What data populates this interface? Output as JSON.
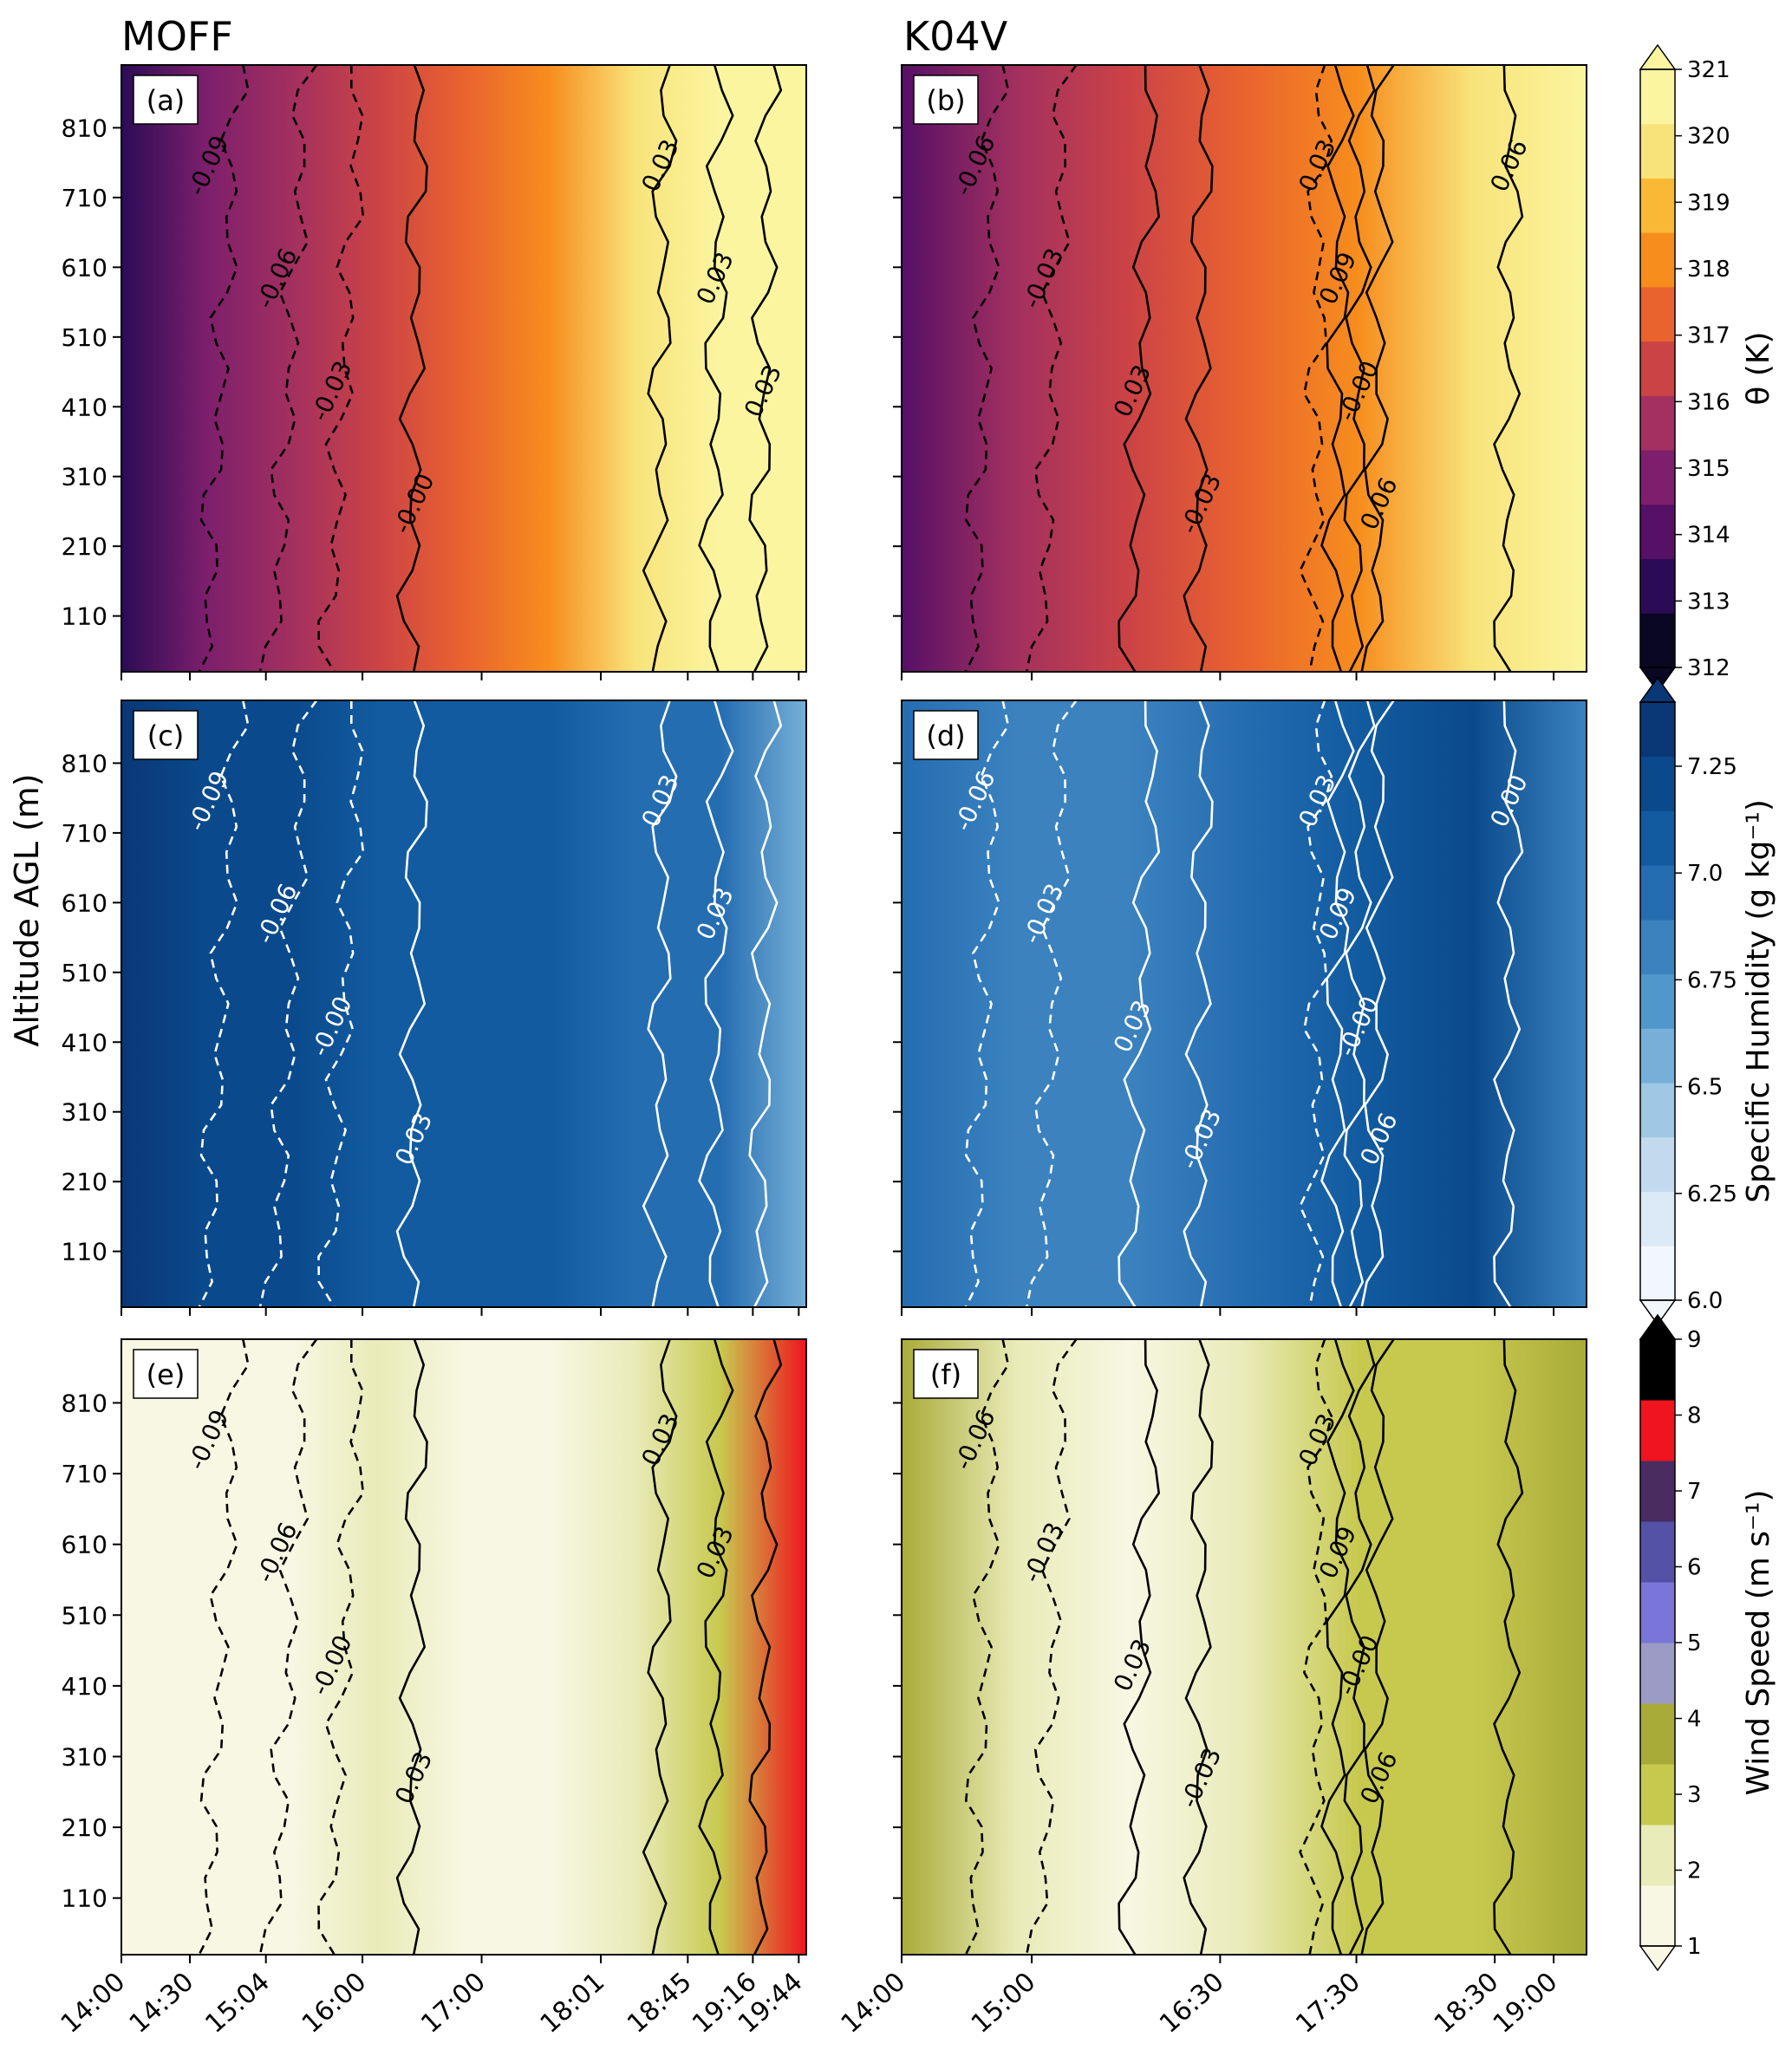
{
  "figure": {
    "column_titles": [
      "MOFF",
      "K04V"
    ],
    "shared_ylabel": "Altitude AGL (m)"
  },
  "chart_data": [
    {
      "type": "heatmap",
      "panel": "(a)",
      "column": "MOFF",
      "variable": "theta",
      "x_ticks": [
        "14:00",
        "14:30",
        "15:04",
        "16:00",
        "17:00",
        "18:01",
        "18:45",
        "19:16",
        "19:44"
      ],
      "y_ticks": [
        110,
        210,
        310,
        410,
        510,
        610,
        710,
        810
      ],
      "ylim": [
        30,
        900
      ],
      "ylabel": "Altitude AGL (m)",
      "approx_theta_by_time_K": [
        313.5,
        314.5,
        315.5,
        316.5,
        317.5,
        318.5,
        319.5,
        320.5,
        320.5
      ],
      "contour_labels": [
        "-0.09",
        "-0.06",
        "-0.03",
        "-0.00",
        "0.03",
        "0.03",
        "0.03"
      ]
    },
    {
      "type": "heatmap",
      "panel": "(b)",
      "column": "K04V",
      "variable": "theta",
      "x_ticks": [
        "14:00",
        "15:00",
        "16:30",
        "17:30",
        "18:30",
        "19:00"
      ],
      "y_ticks": [
        110,
        210,
        310,
        410,
        510,
        610,
        710,
        810
      ],
      "ylim": [
        30,
        900
      ],
      "approx_theta_by_time_K": [
        314,
        315.5,
        316.5,
        317.5,
        318.5,
        319.5,
        320.5
      ],
      "contour_labels": [
        "-0.06",
        "-0.03",
        "0.03",
        "-0.03",
        "0.03",
        "0.09",
        "-0.00",
        "0.06",
        "0.06"
      ]
    },
    {
      "type": "heatmap",
      "panel": "(c)",
      "column": "MOFF",
      "variable": "specific_humidity",
      "x_ticks": [
        "14:00",
        "14:30",
        "15:04",
        "16:00",
        "17:00",
        "18:01",
        "18:45",
        "19:16",
        "19:44"
      ],
      "y_ticks": [
        110,
        210,
        310,
        410,
        510,
        610,
        710,
        810
      ],
      "ylim": [
        30,
        900
      ],
      "ylabel": "Altitude AGL (m)",
      "approx_q_by_time_gkg": [
        7.3,
        7.2,
        7.15,
        7.1,
        7.1,
        7.05,
        7.0,
        6.9,
        6.6
      ],
      "contour_labels": [
        "-0.09",
        "-0.06",
        "-0.00",
        "0.03",
        "0.03",
        "0.03"
      ]
    },
    {
      "type": "heatmap",
      "panel": "(d)",
      "column": "K04V",
      "variable": "specific_humidity",
      "x_ticks": [
        "14:00",
        "15:00",
        "16:30",
        "17:30",
        "18:30",
        "19:00"
      ],
      "y_ticks": [
        110,
        210,
        310,
        410,
        510,
        610,
        710,
        810
      ],
      "ylim": [
        30,
        900
      ],
      "approx_q_by_time_gkg": [
        6.9,
        6.8,
        6.85,
        6.95,
        7.1,
        7.2,
        6.85
      ],
      "contour_labels": [
        "-0.06",
        "-0.03",
        "0.03",
        "-0.03",
        "0.03",
        "0.09",
        "-0.00",
        "0.06",
        "0.00"
      ]
    },
    {
      "type": "heatmap",
      "panel": "(e)",
      "column": "MOFF",
      "variable": "wind_speed",
      "x_ticks": [
        "14:00",
        "14:30",
        "15:04",
        "16:00",
        "17:00",
        "18:01",
        "18:45",
        "19:16",
        "19:44"
      ],
      "y_ticks": [
        110,
        210,
        310,
        410,
        510,
        610,
        710,
        810
      ],
      "ylim": [
        30,
        900
      ],
      "ylabel": "Altitude AGL (m)",
      "approx_ws_by_time_ms": [
        1.5,
        1.2,
        1.0,
        2.2,
        1.0,
        1.3,
        2.5,
        3.0,
        7.5
      ],
      "contour_labels": [
        "-0.09",
        "-0.06",
        "-0.00",
        "0.03",
        "0.03",
        "0.03"
      ]
    },
    {
      "type": "heatmap",
      "panel": "(f)",
      "column": "K04V",
      "variable": "wind_speed",
      "x_ticks": [
        "14:00",
        "15:00",
        "16:30",
        "17:30",
        "18:30",
        "19:00"
      ],
      "y_ticks": [
        110,
        210,
        310,
        410,
        510,
        610,
        710,
        810
      ],
      "ylim": [
        30,
        900
      ],
      "approx_ws_by_time_ms": [
        3.5,
        2.5,
        1.5,
        2.2,
        2.8,
        3.2,
        3.5
      ],
      "contour_labels": [
        "-0.06",
        "-0.03",
        "0.03",
        "-0.03",
        "0.03",
        "0.09",
        "-0.00",
        "0.06"
      ]
    }
  ],
  "colorbars": [
    {
      "name": "theta",
      "label": "θ (K)",
      "ticks": [
        "312",
        "313",
        "314",
        "315",
        "316",
        "317",
        "318",
        "319",
        "320",
        "321"
      ],
      "colors": [
        "#0a0722",
        "#2c0b56",
        "#561066",
        "#7d1f6c",
        "#a3305f",
        "#cc4345",
        "#e9632f",
        "#f78d1d",
        "#f9b934",
        "#f8e37a",
        "#fbf5a0"
      ]
    },
    {
      "name": "specific_humidity",
      "label": "Specific Humidity (g kg⁻¹)",
      "ticks": [
        "6.0",
        "6.25",
        "6.5",
        "6.75",
        "7.0",
        "7.25"
      ],
      "colors": [
        "#f2f7fd",
        "#dce9f6",
        "#c3d9ee",
        "#9ec8e3",
        "#76b0d8",
        "#5098cc",
        "#3b82bf",
        "#256db1",
        "#125ba0",
        "#0a4a8c",
        "#0a3776"
      ]
    },
    {
      "name": "wind_speed",
      "label": "Wind Speed (m s⁻¹)",
      "ticks": [
        "1",
        "2",
        "3",
        "4",
        "5",
        "6",
        "7",
        "8",
        "9"
      ],
      "colors": [
        "#f7f7e3",
        "#e9ebb8",
        "#c7c94f",
        "#a9ab39",
        "#9b9bc6",
        "#7a75d8",
        "#5352a7",
        "#4a2c62",
        "#f0141e",
        "#000000"
      ]
    }
  ]
}
